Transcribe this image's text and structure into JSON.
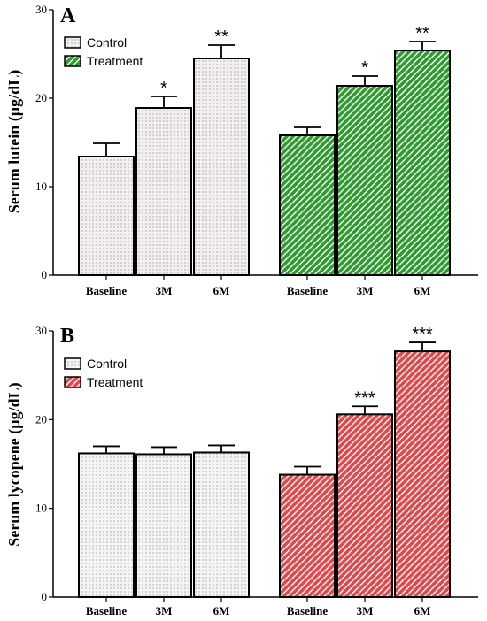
{
  "chart_data": [
    {
      "type": "bar",
      "panel": "A",
      "ylabel": "Serum lutein (µg/dL)",
      "ylim": [
        0,
        30
      ],
      "yticks": [
        "0",
        "10",
        "20",
        "30"
      ],
      "groups": [
        "Control",
        "Treatment"
      ],
      "categories": [
        "Baseline",
        "3M",
        "6M"
      ],
      "legend": [
        "Control",
        "Treatment"
      ],
      "legend_position": "top-left",
      "series": [
        {
          "name": "Control",
          "values": [
            13.4,
            18.9,
            24.5
          ],
          "errors": [
            1.5,
            1.3,
            1.5
          ],
          "sig": [
            "",
            "*",
            "**"
          ],
          "color": "#f4efef",
          "pattern": "dots"
        },
        {
          "name": "Treatment",
          "values": [
            15.8,
            21.4,
            25.4
          ],
          "errors": [
            0.9,
            1.1,
            1.0
          ],
          "sig": [
            "",
            "*",
            "**"
          ],
          "color": "#2e9b2e",
          "pattern": "hatch"
        }
      ]
    },
    {
      "type": "bar",
      "panel": "B",
      "ylabel": "Serum lycopene (µg/dL)",
      "ylim": [
        0,
        30
      ],
      "yticks": [
        "0",
        "10",
        "20",
        "30"
      ],
      "groups": [
        "Control",
        "Treatment"
      ],
      "categories": [
        "Baseline",
        "3M",
        "6M"
      ],
      "legend": [
        "Control",
        "Treatment"
      ],
      "legend_position": "top-left",
      "series": [
        {
          "name": "Control",
          "values": [
            16.2,
            16.1,
            16.3
          ],
          "errors": [
            0.8,
            0.8,
            0.8
          ],
          "sig": [
            "",
            "",
            ""
          ],
          "color": "#f4f4f4",
          "pattern": "dots"
        },
        {
          "name": "Treatment",
          "values": [
            13.8,
            20.6,
            27.7
          ],
          "errors": [
            0.9,
            0.9,
            1.0
          ],
          "sig": [
            "",
            "***",
            "***"
          ],
          "color": "#e0484c",
          "pattern": "hatch"
        }
      ]
    }
  ]
}
